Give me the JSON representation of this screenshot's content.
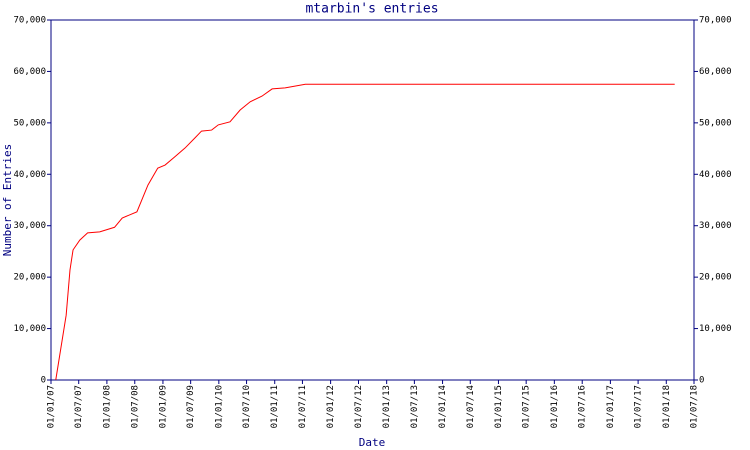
{
  "chart_data": {
    "type": "line",
    "title": "mtarbin's entries",
    "x_label": "Date",
    "y_label": "Number of Entries",
    "x": [
      "2007-02-01",
      "2007-04-10",
      "2007-05-05",
      "2007-05-25",
      "2007-07-08",
      "2007-08-28",
      "2007-11-15",
      "2008-02-20",
      "2008-04-10",
      "2008-07-15",
      "2008-09-25",
      "2008-11-28",
      "2009-01-15",
      "2009-03-20",
      "2009-05-25",
      "2009-07-30",
      "2009-09-10",
      "2009-11-15",
      "2009-12-28",
      "2010-03-15",
      "2010-05-20",
      "2010-07-25",
      "2010-10-10",
      "2010-12-15",
      "2011-03-10",
      "2011-07-20",
      "2012-07-01",
      "2014-07-01",
      "2016-07-01",
      "2018-02-25"
    ],
    "series": [
      {
        "name": "mtarbin",
        "color": "#ff0000",
        "values": [
          0,
          12600,
          21400,
          25300,
          27200,
          28600,
          28800,
          29700,
          31500,
          32700,
          37900,
          41200,
          41800,
          43400,
          45100,
          47100,
          48400,
          48600,
          49600,
          50200,
          52500,
          54100,
          55200,
          56600,
          56800,
          57500,
          57500,
          57500,
          57500,
          57500
        ]
      }
    ],
    "xlim": [
      "2007-01-01",
      "2018-07-01"
    ],
    "xticks": [
      {
        "value": "2007-01-01",
        "label": "01/01/07"
      },
      {
        "value": "2007-07-01",
        "label": "01/07/07"
      },
      {
        "value": "2008-01-01",
        "label": "01/01/08"
      },
      {
        "value": "2008-07-01",
        "label": "01/07/08"
      },
      {
        "value": "2009-01-01",
        "label": "01/01/09"
      },
      {
        "value": "2009-07-01",
        "label": "01/07/09"
      },
      {
        "value": "2010-01-01",
        "label": "01/01/10"
      },
      {
        "value": "2010-07-01",
        "label": "01/07/10"
      },
      {
        "value": "2011-01-01",
        "label": "01/01/11"
      },
      {
        "value": "2011-07-01",
        "label": "01/07/11"
      },
      {
        "value": "2012-01-01",
        "label": "01/01/12"
      },
      {
        "value": "2012-07-01",
        "label": "01/07/12"
      },
      {
        "value": "2013-01-01",
        "label": "01/01/13"
      },
      {
        "value": "2013-07-01",
        "label": "01/07/13"
      },
      {
        "value": "2014-01-01",
        "label": "01/01/14"
      },
      {
        "value": "2014-07-01",
        "label": "01/07/14"
      },
      {
        "value": "2015-01-01",
        "label": "01/01/15"
      },
      {
        "value": "2015-07-01",
        "label": "01/07/15"
      },
      {
        "value": "2016-01-01",
        "label": "01/01/16"
      },
      {
        "value": "2016-07-01",
        "label": "01/07/16"
      },
      {
        "value": "2017-01-01",
        "label": "01/01/17"
      },
      {
        "value": "2017-07-01",
        "label": "01/07/17"
      },
      {
        "value": "2018-01-01",
        "label": "01/01/18"
      },
      {
        "value": "2018-07-01",
        "label": "01/07/18"
      }
    ],
    "ylim": [
      0,
      70000
    ],
    "yticks": [
      0,
      {
        "value": 10000,
        "label": "10,000"
      },
      {
        "value": 20000,
        "label": "20,000"
      },
      {
        "value": 30000,
        "label": "30,000"
      },
      {
        "value": 40000,
        "label": "40,000"
      },
      {
        "value": 50000,
        "label": "50,000"
      },
      {
        "value": 60000,
        "label": "60,000"
      },
      {
        "value": 70000,
        "label": "70,000"
      }
    ],
    "axis_color": "#000080"
  }
}
